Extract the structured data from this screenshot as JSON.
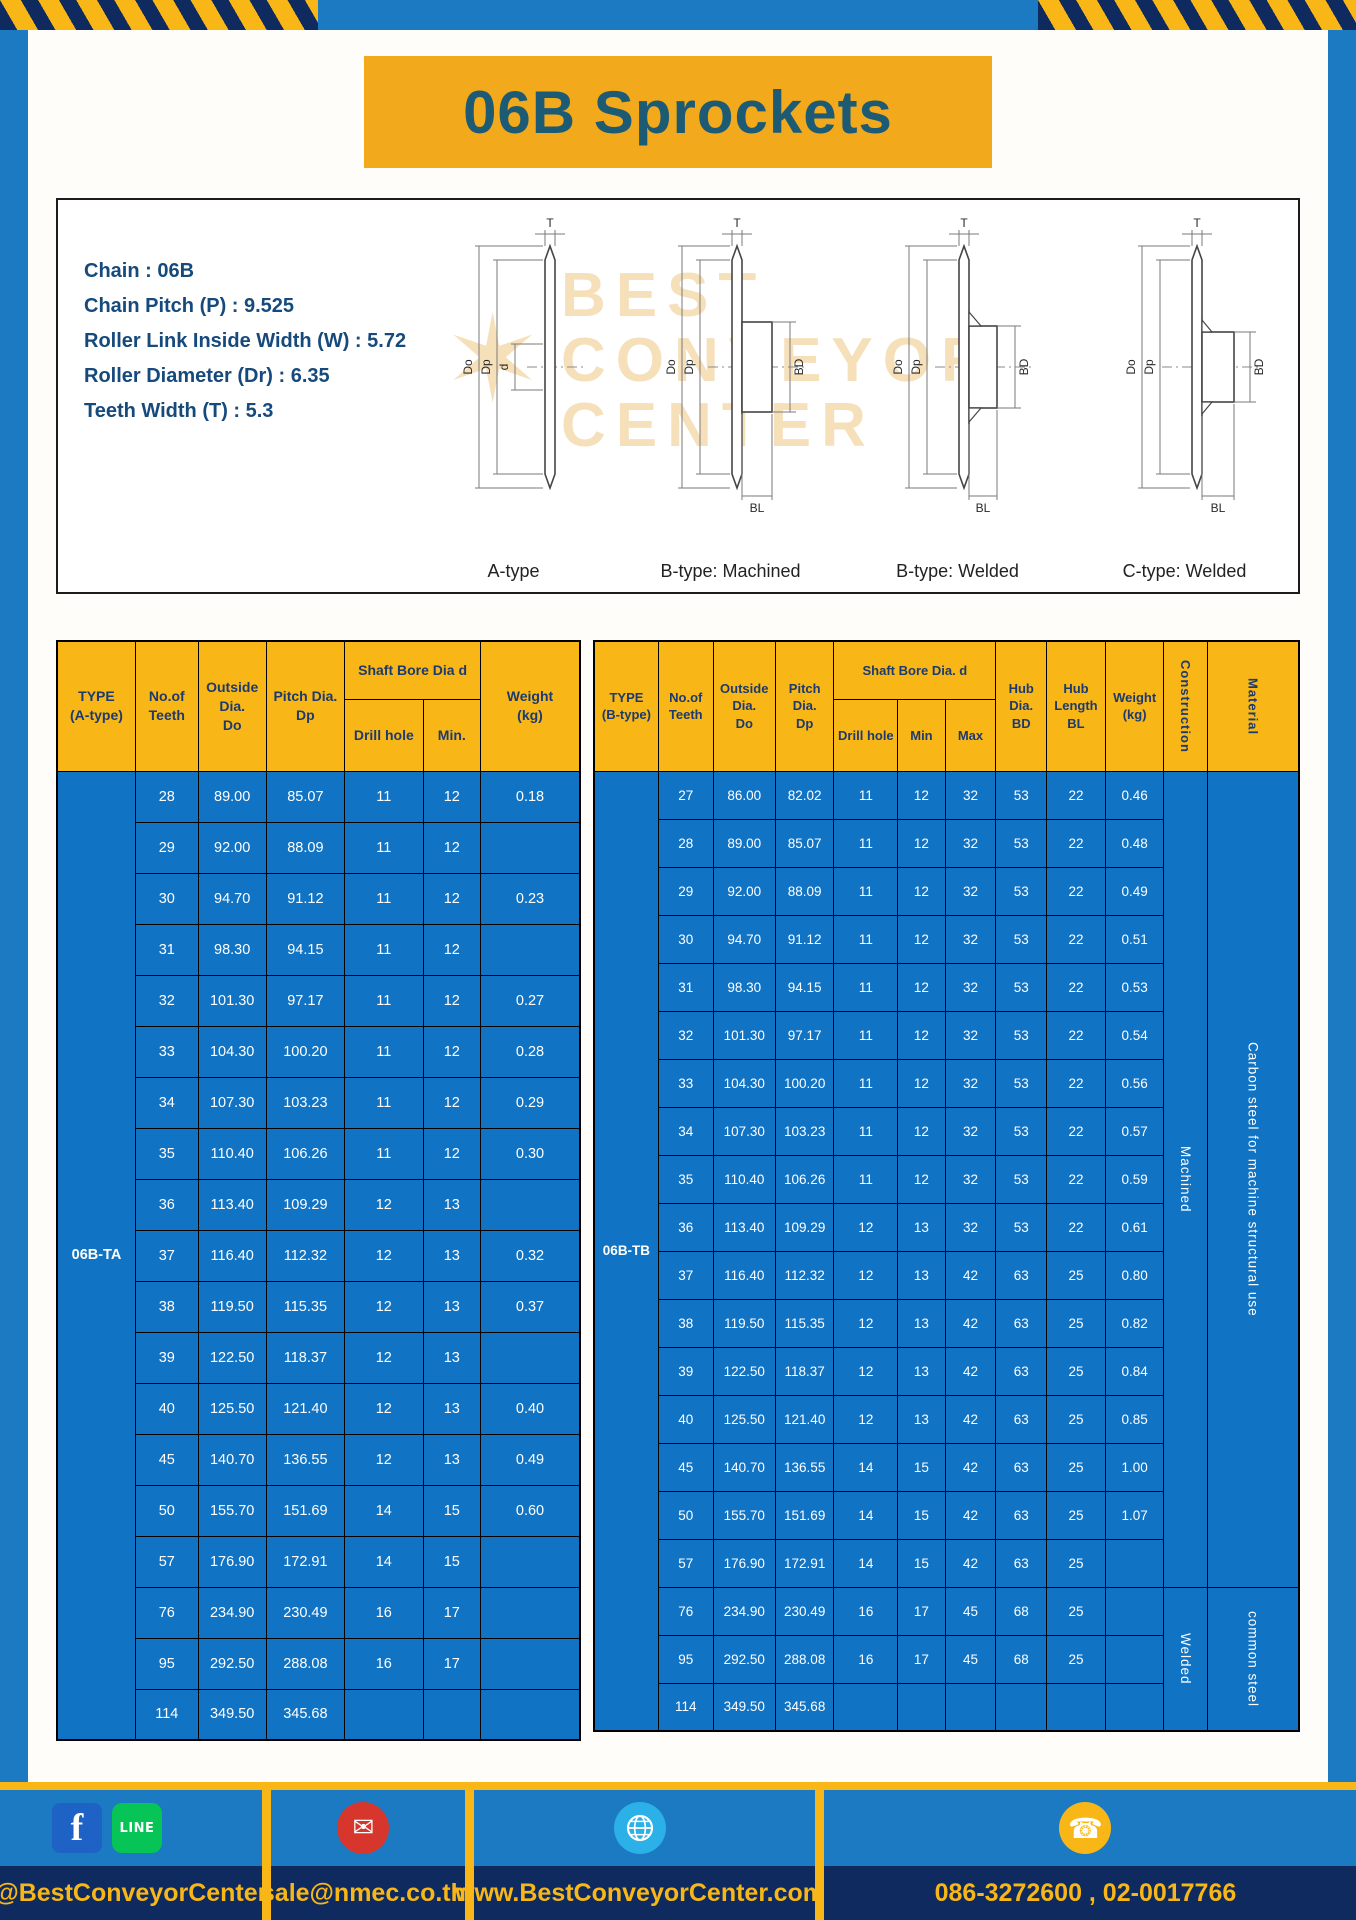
{
  "page": {
    "title": "06B Sprockets"
  },
  "specs": {
    "lines": [
      "Chain  :  06B",
      "Chain Pitch (P)  :  9.525",
      "Roller Link Inside Width (W)  :  5.72",
      "Roller Diameter (Dr)  :  6.35",
      "Teeth Width (T)  :  5.3"
    ]
  },
  "drawings": {
    "watermark": [
      "BEST",
      "CONVEYOR",
      "CENTER"
    ],
    "dims": {
      "t": "T",
      "do": "Do",
      "dp": "Dp",
      "d": "d",
      "bd": "BD",
      "bl": "BL"
    },
    "items": [
      {
        "label": "A-type"
      },
      {
        "label": "B-type: Machined"
      },
      {
        "label": "B-type: Welded"
      },
      {
        "label": "C-type: Welded"
      }
    ]
  },
  "table_a": {
    "type_value": "06B-TA",
    "headers": {
      "type": [
        "TYPE",
        "(A-type)"
      ],
      "teeth": [
        "No.of",
        "Teeth"
      ],
      "outside": [
        "Outside",
        "Dia.",
        "Do"
      ],
      "pitch": [
        "Pitch Dia.",
        "Dp"
      ],
      "bore_group": "Shaft Bore Dia d",
      "drill": "Drill hole",
      "min": "Min.",
      "weight": [
        "Weight",
        "(kg)"
      ]
    },
    "rows": [
      [
        "28",
        "89.00",
        "85.07",
        "11",
        "12",
        "0.18"
      ],
      [
        "29",
        "92.00",
        "88.09",
        "11",
        "12",
        ""
      ],
      [
        "30",
        "94.70",
        "91.12",
        "11",
        "12",
        "0.23"
      ],
      [
        "31",
        "98.30",
        "94.15",
        "11",
        "12",
        ""
      ],
      [
        "32",
        "101.30",
        "97.17",
        "11",
        "12",
        "0.27"
      ],
      [
        "33",
        "104.30",
        "100.20",
        "11",
        "12",
        "0.28"
      ],
      [
        "34",
        "107.30",
        "103.23",
        "11",
        "12",
        "0.29"
      ],
      [
        "35",
        "110.40",
        "106.26",
        "11",
        "12",
        "0.30"
      ],
      [
        "36",
        "113.40",
        "109.29",
        "12",
        "13",
        ""
      ],
      [
        "37",
        "116.40",
        "112.32",
        "12",
        "13",
        "0.32"
      ],
      [
        "38",
        "119.50",
        "115.35",
        "12",
        "13",
        "0.37"
      ],
      [
        "39",
        "122.50",
        "118.37",
        "12",
        "13",
        ""
      ],
      [
        "40",
        "125.50",
        "121.40",
        "12",
        "13",
        "0.40"
      ],
      [
        "45",
        "140.70",
        "136.55",
        "12",
        "13",
        "0.49"
      ],
      [
        "50",
        "155.70",
        "151.69",
        "14",
        "15",
        "0.60"
      ],
      [
        "57",
        "176.90",
        "172.91",
        "14",
        "15",
        ""
      ],
      [
        "76",
        "234.90",
        "230.49",
        "16",
        "17",
        ""
      ],
      [
        "95",
        "292.50",
        "288.08",
        "16",
        "17",
        ""
      ],
      [
        "114",
        "349.50",
        "345.68",
        "",
        "",
        ""
      ]
    ]
  },
  "table_b": {
    "type_value": "06B-TB",
    "headers": {
      "type": [
        "TYPE",
        "(B-type)"
      ],
      "teeth": [
        "No.of",
        "Teeth"
      ],
      "outside": [
        "Outside",
        "Dia.",
        "Do"
      ],
      "pitch": [
        "Pitch",
        "Dia.",
        "Dp"
      ],
      "bore_group": "Shaft Bore Dia. d",
      "drill": "Drill hole",
      "min": "Min",
      "max": "Max",
      "hub_dia": [
        "Hub",
        "Dia.",
        "BD"
      ],
      "hub_len": [
        "Hub",
        "Length",
        "BL"
      ],
      "weight": [
        "Weight",
        "(kg)"
      ],
      "construction": "Construction",
      "material": "Material"
    },
    "rows": [
      [
        "27",
        "86.00",
        "82.02",
        "11",
        "12",
        "32",
        "53",
        "22",
        "0.46"
      ],
      [
        "28",
        "89.00",
        "85.07",
        "11",
        "12",
        "32",
        "53",
        "22",
        "0.48"
      ],
      [
        "29",
        "92.00",
        "88.09",
        "11",
        "12",
        "32",
        "53",
        "22",
        "0.49"
      ],
      [
        "30",
        "94.70",
        "91.12",
        "11",
        "12",
        "32",
        "53",
        "22",
        "0.51"
      ],
      [
        "31",
        "98.30",
        "94.15",
        "11",
        "12",
        "32",
        "53",
        "22",
        "0.53"
      ],
      [
        "32",
        "101.30",
        "97.17",
        "11",
        "12",
        "32",
        "53",
        "22",
        "0.54"
      ],
      [
        "33",
        "104.30",
        "100.20",
        "11",
        "12",
        "32",
        "53",
        "22",
        "0.56"
      ],
      [
        "34",
        "107.30",
        "103.23",
        "11",
        "12",
        "32",
        "53",
        "22",
        "0.57"
      ],
      [
        "35",
        "110.40",
        "106.26",
        "11",
        "12",
        "32",
        "53",
        "22",
        "0.59"
      ],
      [
        "36",
        "113.40",
        "109.29",
        "12",
        "13",
        "32",
        "53",
        "22",
        "0.61"
      ],
      [
        "37",
        "116.40",
        "112.32",
        "12",
        "13",
        "42",
        "63",
        "25",
        "0.80"
      ],
      [
        "38",
        "119.50",
        "115.35",
        "12",
        "13",
        "42",
        "63",
        "25",
        "0.82"
      ],
      [
        "39",
        "122.50",
        "118.37",
        "12",
        "13",
        "42",
        "63",
        "25",
        "0.84"
      ],
      [
        "40",
        "125.50",
        "121.40",
        "12",
        "13",
        "42",
        "63",
        "25",
        "0.85"
      ],
      [
        "45",
        "140.70",
        "136.55",
        "14",
        "15",
        "42",
        "63",
        "25",
        "1.00"
      ],
      [
        "50",
        "155.70",
        "151.69",
        "14",
        "15",
        "42",
        "63",
        "25",
        "1.07"
      ],
      [
        "57",
        "176.90",
        "172.91",
        "14",
        "15",
        "42",
        "63",
        "25",
        ""
      ],
      [
        "76",
        "234.90",
        "230.49",
        "16",
        "17",
        "45",
        "68",
        "25",
        ""
      ],
      [
        "95",
        "292.50",
        "288.08",
        "16",
        "17",
        "45",
        "68",
        "25",
        ""
      ],
      [
        "114",
        "349.50",
        "345.68",
        "",
        "",
        "",
        "",
        "",
        ""
      ]
    ],
    "construction_groups": [
      {
        "label": "Machined",
        "span": 17
      },
      {
        "label": "Welded",
        "span": 3
      }
    ],
    "material_groups": [
      {
        "label": "Carbon steel for machine structural use",
        "span": 17
      },
      {
        "label": "common steel",
        "span": 3
      }
    ]
  },
  "footer": {
    "line_label": "LINE",
    "sections": [
      {
        "label": "@BestConveyorCenter"
      },
      {
        "label": "sale@nmec.co.th"
      },
      {
        "label": "www.BestConveyorCenter.com"
      },
      {
        "label": "086-3272600 , 02-0017766"
      }
    ]
  }
}
